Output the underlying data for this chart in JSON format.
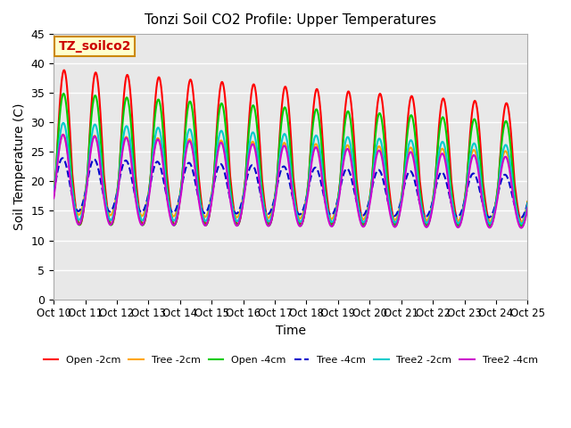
{
  "title": "Tonzi Soil CO2 Profile: Upper Temperatures",
  "xlabel": "Time",
  "ylabel": "Soil Temperature (C)",
  "ylim": [
    0,
    45
  ],
  "xlim": [
    0,
    25
  ],
  "xtick_labels": [
    "Oct 10",
    "Oct 11",
    "Oct 12",
    "Oct 13",
    "Oct 14",
    "Oct 15",
    "Oct 16",
    "Oct 17",
    "Oct 18",
    "Oct 19",
    "Oct 20",
    "Oct 21",
    "Oct 22",
    "Oct 23",
    "Oct 24",
    "Oct 25"
  ],
  "xtick_positions": [
    0,
    1,
    2,
    3,
    4,
    5,
    6,
    7,
    8,
    9,
    10,
    11,
    12,
    13,
    14,
    15
  ],
  "ytick_positions": [
    0,
    5,
    10,
    15,
    20,
    25,
    30,
    35,
    40,
    45
  ],
  "series": [
    {
      "label": "Open -2cm",
      "color": "#ff0000",
      "lw": 1.5
    },
    {
      "label": "Tree -2cm",
      "color": "#ffa500",
      "lw": 1.5
    },
    {
      "label": "Open -4cm",
      "color": "#00cc00",
      "lw": 1.5
    },
    {
      "label": "Tree -4cm",
      "color": "#0000cc",
      "lw": 1.5
    },
    {
      "label": "Tree2 -2cm",
      "color": "#00cccc",
      "lw": 1.5
    },
    {
      "label": "Tree2 -4cm",
      "color": "#cc00cc",
      "lw": 1.5
    }
  ],
  "bg_color": "#e8e8e8",
  "axes_bg_color": "#e8e8e8",
  "grid_color": "#ffffff",
  "annotation_text": "TZ_soilco2",
  "annotation_bg": "#ffffcc",
  "annotation_border": "#cc8800"
}
